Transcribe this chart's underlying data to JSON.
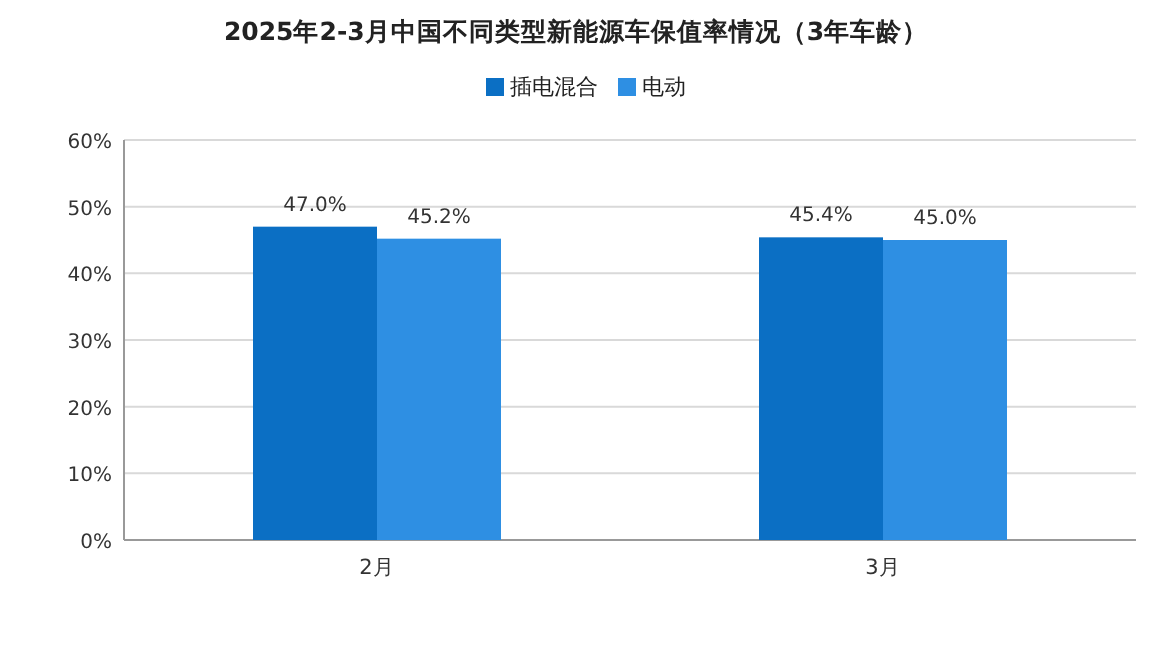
{
  "chart_data": {
    "type": "bar",
    "title": "2025年2-3月中国不同类型新能源车保值率情况（3年车龄）",
    "categories": [
      "2月",
      "3月"
    ],
    "series": [
      {
        "name": "插电混合",
        "color": "#0b6fc4",
        "values": [
          47.0,
          45.4
        ],
        "value_labels": [
          "47.0%",
          "45.4%"
        ]
      },
      {
        "name": "电动",
        "color": "#2e8fe3",
        "values": [
          45.2,
          45.0
        ],
        "value_labels": [
          "45.2%",
          "45.0%"
        ]
      }
    ],
    "ylim": [
      0,
      60
    ],
    "yticks": [
      {
        "value": 0,
        "label": "0%"
      },
      {
        "value": 10,
        "label": "10%"
      },
      {
        "value": 20,
        "label": "20%"
      },
      {
        "value": 30,
        "label": "30%"
      },
      {
        "value": 40,
        "label": "40%"
      },
      {
        "value": 50,
        "label": "50%"
      },
      {
        "value": 60,
        "label": "60%"
      }
    ],
    "grid": "y",
    "legend": "top"
  }
}
